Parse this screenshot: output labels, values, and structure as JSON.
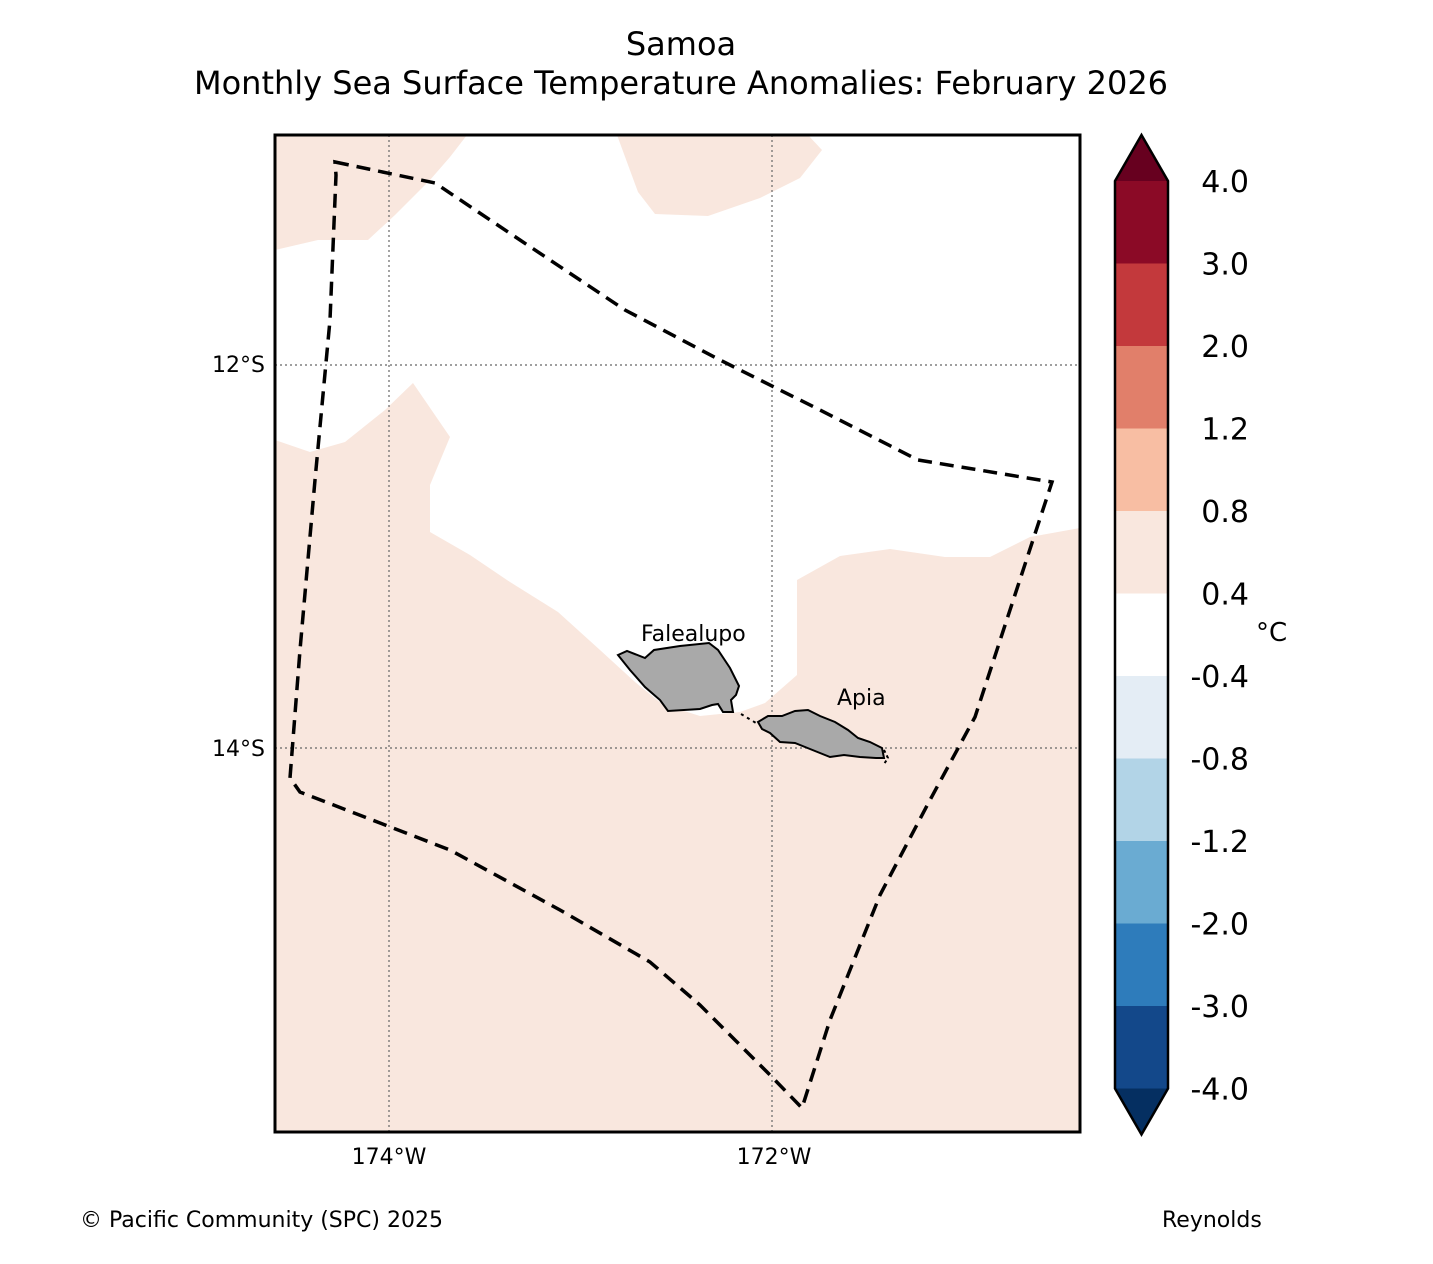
{
  "title": {
    "line1": "Samoa",
    "line2": "Monthly Sea Surface Temperature Anomalies: February 2026"
  },
  "axes": {
    "lat_ticks": [
      "12°S",
      "14°S"
    ],
    "lon_ticks": [
      "174°W",
      "172°W"
    ]
  },
  "places": {
    "falealupo": "Falealupo",
    "apia": "Apia"
  },
  "colorbar": {
    "unit": "°C",
    "tick_labels": [
      "4.0",
      "3.0",
      "2.0",
      "1.2",
      "0.8",
      "0.4",
      "-0.4",
      "-0.8",
      "-1.2",
      "-2.0",
      "-3.0",
      "-4.0"
    ],
    "colors_top_to_bottom": [
      "#67001f",
      "#8b0a26",
      "#c3393c",
      "#e17f6a",
      "#f8bea3",
      "#f9e7de",
      "#ffffff",
      "#e4edf5",
      "#b2d4e7",
      "#6aabd2",
      "#2e7cbb",
      "#13488a",
      "#052f61"
    ]
  },
  "colors": {
    "land": "#a9a9a9",
    "anomaly_fill": "#f9e7de",
    "eez_line": "#000000"
  },
  "footer": {
    "credit": "© Pacific Community (SPC) 2025",
    "source": "Reynolds"
  }
}
